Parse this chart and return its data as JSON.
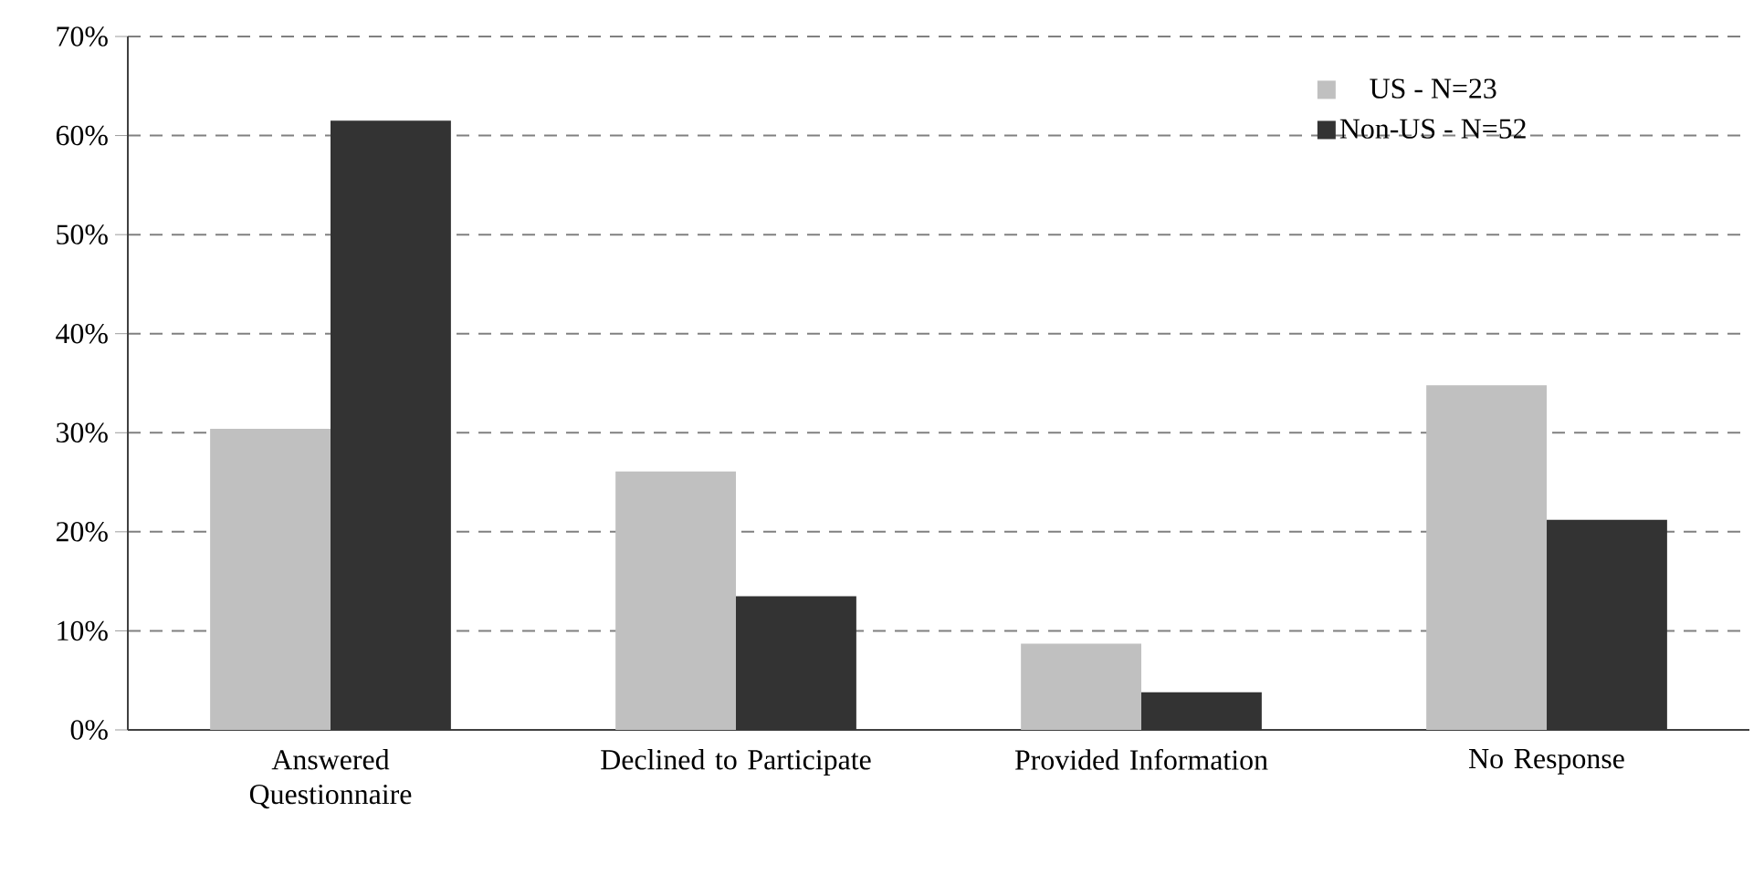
{
  "chart_data": {
    "type": "bar",
    "categories": [
      "Answered Questionnaire",
      "Declined to Participate",
      "Provided Information",
      "No Response"
    ],
    "series": [
      {
        "name": "US - N=23",
        "color": "#c0c0c0",
        "values": [
          30.4,
          26.1,
          8.7,
          34.8
        ]
      },
      {
        "name": "Non-US - N=52",
        "color": "#333333",
        "values": [
          61.5,
          13.5,
          3.8,
          21.2
        ]
      }
    ],
    "ylim": [
      0,
      70
    ],
    "yticks": [
      {
        "value": 0,
        "label": "0%"
      },
      {
        "value": 10,
        "label": "10%"
      },
      {
        "value": 20,
        "label": "20%"
      },
      {
        "value": 30,
        "label": "30%"
      },
      {
        "value": 40,
        "label": "40%"
      },
      {
        "value": 50,
        "label": "50%"
      },
      {
        "value": 60,
        "label": "60%"
      },
      {
        "value": 70,
        "label": "70%"
      }
    ],
    "grid": "y",
    "legend": "top right"
  }
}
